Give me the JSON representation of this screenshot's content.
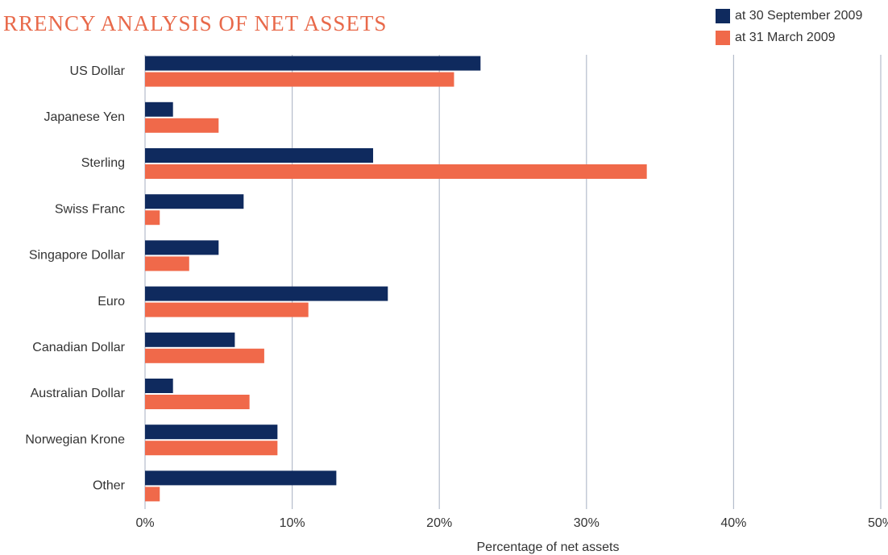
{
  "chart_data": {
    "type": "bar",
    "orientation": "horizontal",
    "title": "RRENCY ANALYSIS OF NET ASSETS",
    "x_label": "Percentage of net assets",
    "categories": [
      "US Dollar",
      "Japanese Yen",
      "Sterling",
      "Swiss Franc",
      "Singapore Dollar",
      "Euro",
      "Canadian Dollar",
      "Australian Dollar",
      "Norwegian Krone",
      "Other"
    ],
    "series": [
      {
        "name": "at 30 September 2009",
        "color": "#0f2a5e",
        "values": [
          22.8,
          1.9,
          15.5,
          6.7,
          5.0,
          16.5,
          6.1,
          1.9,
          9.0,
          13.0
        ]
      },
      {
        "name": "at 31 March 2009",
        "color": "#f0694a",
        "values": [
          21.0,
          5.0,
          34.1,
          1.0,
          3.0,
          11.1,
          8.1,
          7.1,
          9.0,
          1.0
        ]
      }
    ],
    "xlim": [
      0,
      50
    ],
    "xticks": [
      {
        "value": 0,
        "label": "0%"
      },
      {
        "value": 10,
        "label": "10%"
      },
      {
        "value": 20,
        "label": "20%"
      },
      {
        "value": 30,
        "label": "30%"
      },
      {
        "value": 40,
        "label": "40%"
      },
      {
        "value": 50,
        "label": "50%"
      }
    ],
    "grid": true,
    "legend": "top-right"
  }
}
